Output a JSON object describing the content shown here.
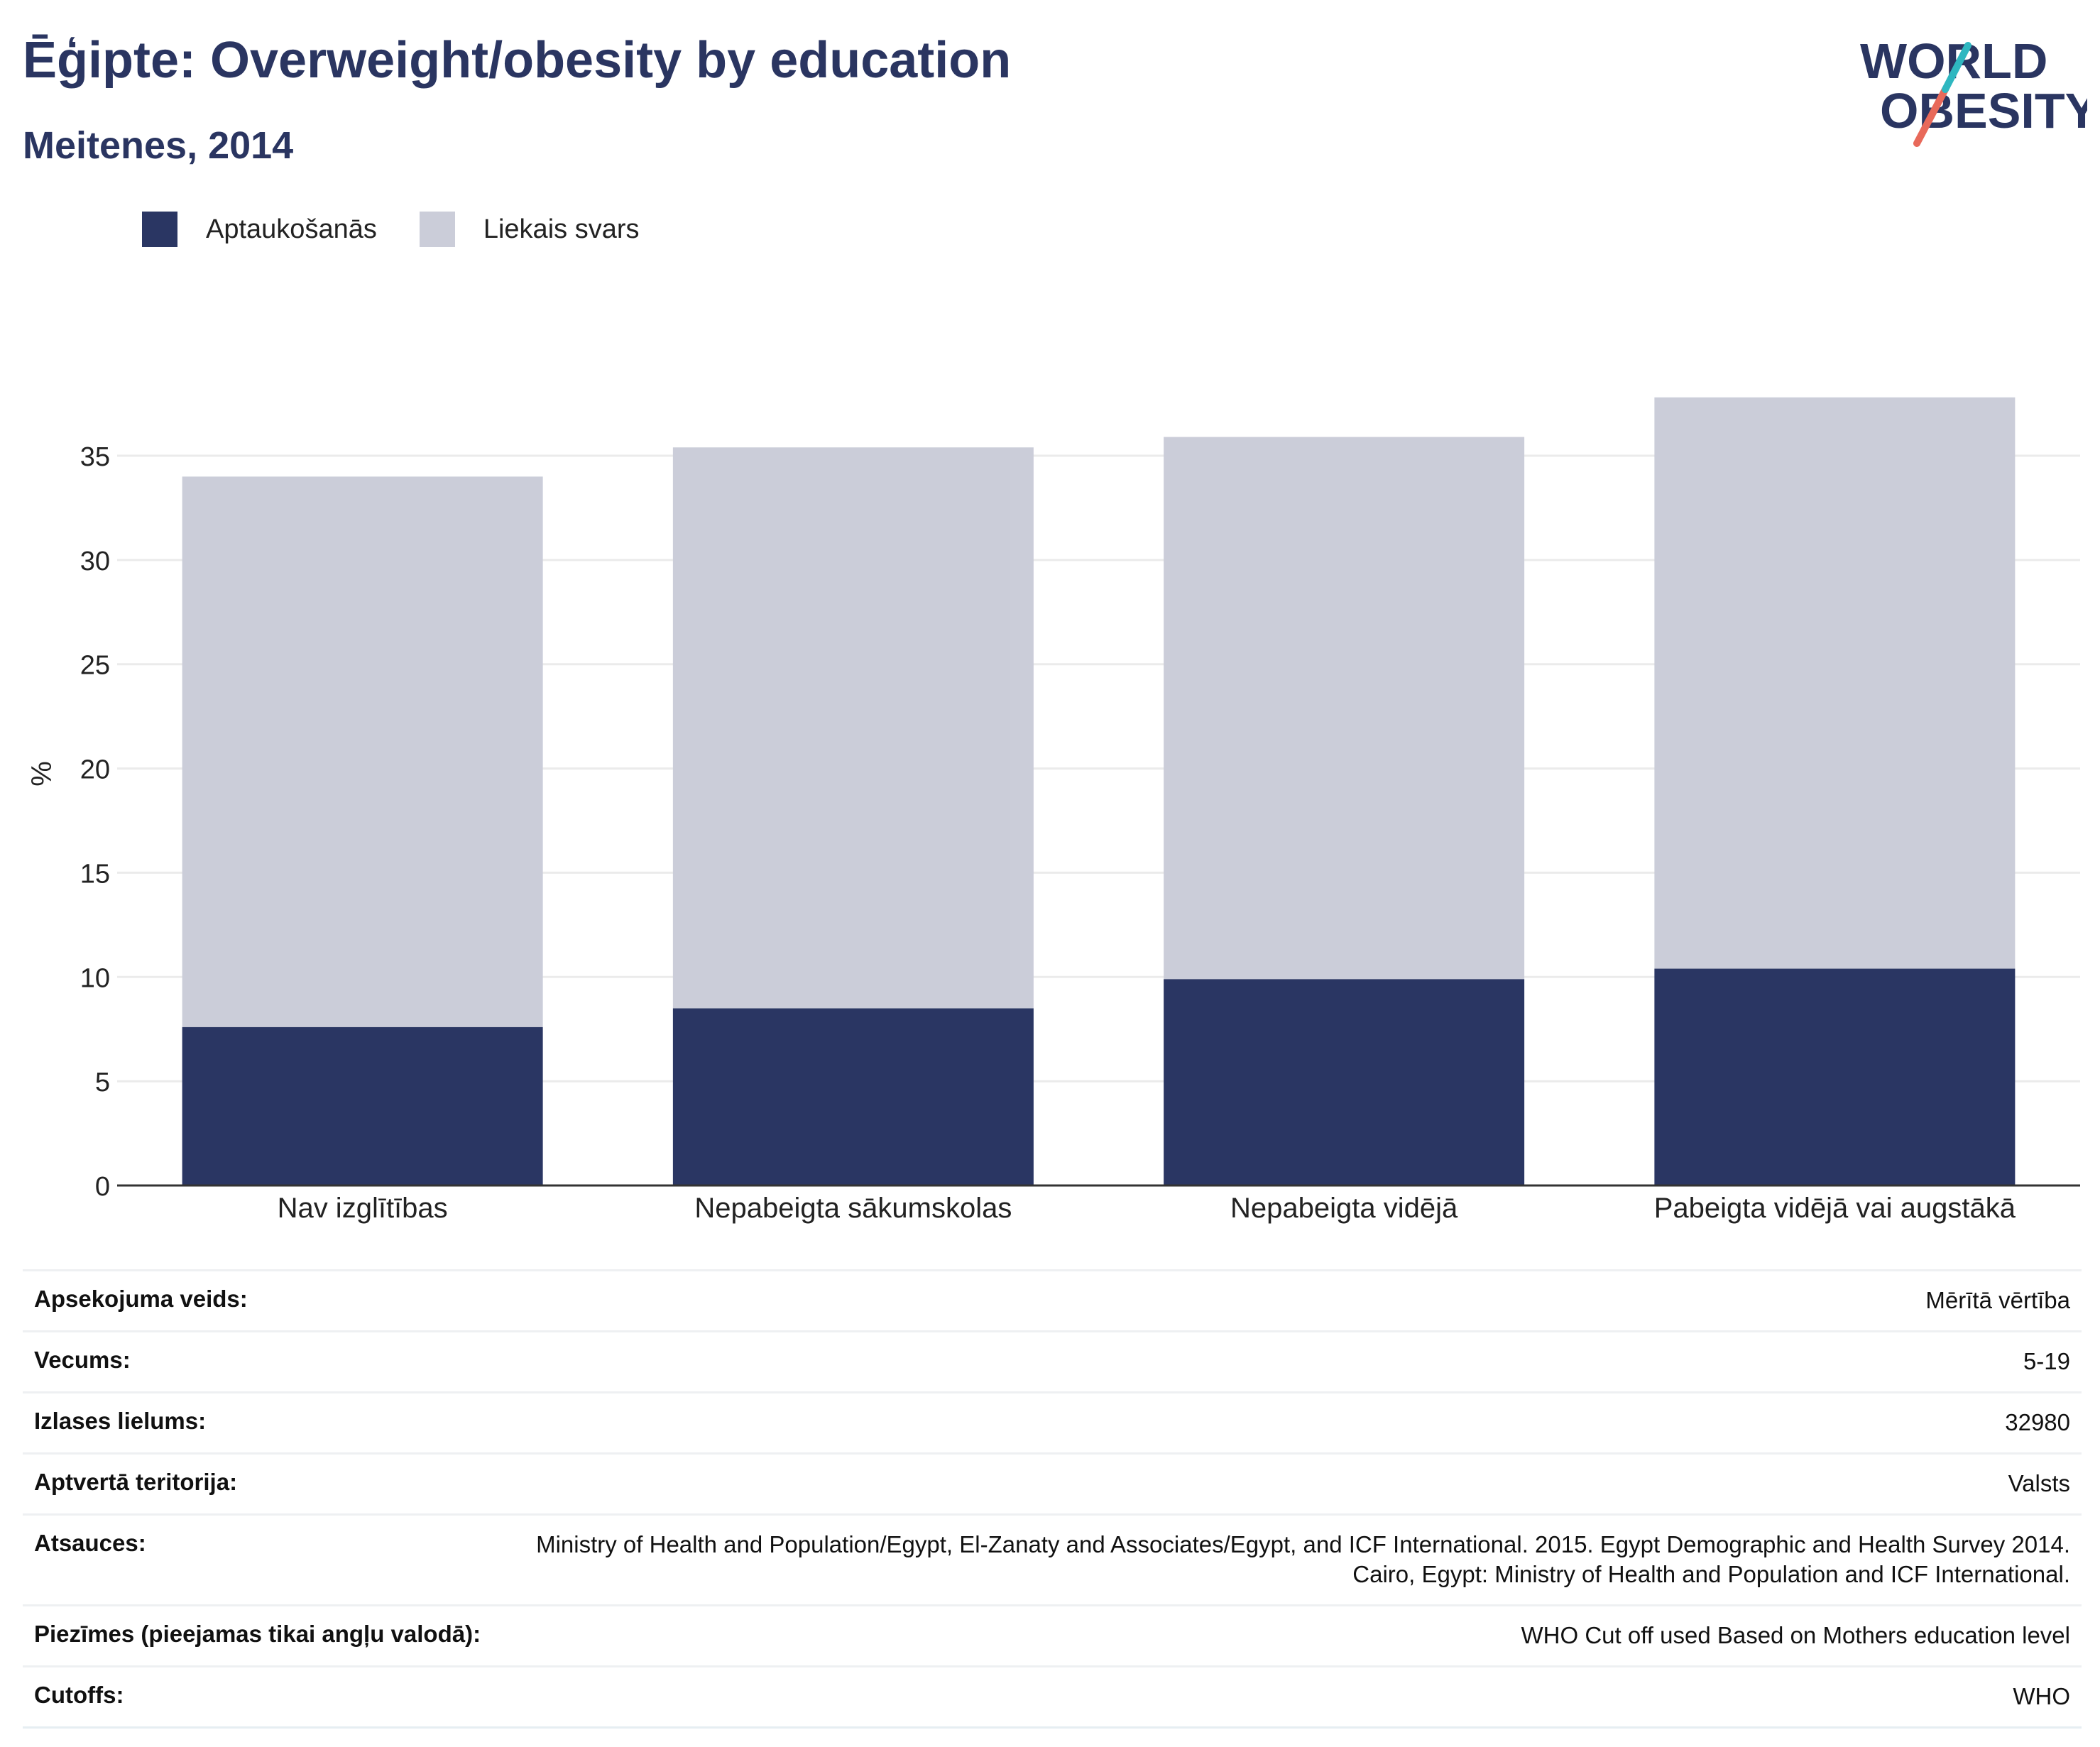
{
  "header": {
    "title": "Ēģipte: Overweight/obesity by education",
    "subtitle": "Meitenes, 2014"
  },
  "logo": {
    "line1": "WORLD",
    "line2": "OBESITY"
  },
  "colors": {
    "obesity": "#2a3663",
    "overweight": "#cbcdd9",
    "text": "#2a3561",
    "grid": "#ebebeb"
  },
  "chart_data": {
    "type": "bar",
    "stacked": true,
    "title": "Ēģipte: Overweight/obesity by education",
    "subtitle": "Meitenes, 2014",
    "ylabel": "%",
    "xlabel": "",
    "ylim": [
      0,
      40
    ],
    "yticks": [
      0,
      5,
      10,
      15,
      20,
      25,
      30,
      35
    ],
    "grid": true,
    "legend_position": "top-left",
    "categories": [
      "Nav izglītības",
      "Nepabeigta sākumskolas",
      "Nepabeigta vidējā",
      "Pabeigta vidējā vai augstākā"
    ],
    "series": [
      {
        "name": "Aptaukošanās",
        "values": [
          7.6,
          8.5,
          9.9,
          10.4
        ]
      },
      {
        "name": "Liekais svars",
        "values": [
          26.4,
          26.9,
          26.0,
          27.4
        ]
      }
    ]
  },
  "info": {
    "rows": [
      {
        "key": "Apsekojuma veids:",
        "value": "Mērītā vērtība"
      },
      {
        "key": "Vecums:",
        "value": "5-19"
      },
      {
        "key": "Izlases lielums:",
        "value": "32980"
      },
      {
        "key": "Aptvertā teritorija:",
        "value": "Valsts"
      },
      {
        "key": "Atsauces:",
        "value": "Ministry of Health and Population/Egypt, El-Zanaty and Associates/Egypt, and ICF International. 2015. Egypt Demographic and Health Survey 2014. Cairo, Egypt: Ministry of Health and Population and ICF International."
      },
      {
        "key": "Piezīmes (pieejamas tikai angļu valodā):",
        "value": "WHO Cut off used Based on Mothers education level"
      },
      {
        "key": "Cutoffs:",
        "value": "WHO"
      }
    ]
  }
}
